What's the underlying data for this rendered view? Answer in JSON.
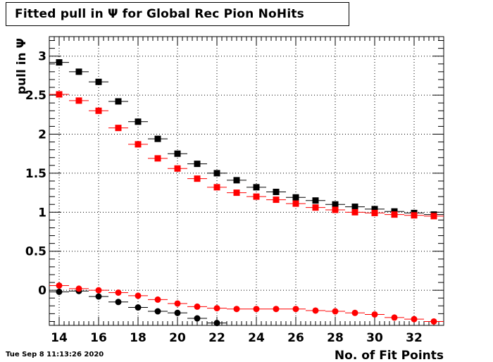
{
  "footer": {
    "timestamp": "Tue Sep  8 11:13:26 2020"
  },
  "chart_data": {
    "type": "scatter",
    "title": "Fitted pull in  Ψ  for Global Rec Pion NoHits",
    "xlabel": "No. of Fit Points",
    "ylabel": "pull in  Ψ",
    "xlim": [
      13.5,
      33.5
    ],
    "ylim": [
      -0.45,
      3.25
    ],
    "x_ticks": [
      "14",
      "16",
      "18",
      "20",
      "22",
      "24",
      "26",
      "28",
      "30",
      "32"
    ],
    "y_ticks": [
      "0",
      "0.5",
      "1",
      "1.5",
      "2",
      "2.5",
      "3"
    ],
    "x_tick_values": [
      14,
      16,
      18,
      20,
      22,
      24,
      26,
      28,
      30,
      32
    ],
    "y_tick_values": [
      0,
      0.5,
      1,
      1.5,
      2,
      2.5,
      3
    ],
    "grid": true,
    "x": [
      14,
      15,
      16,
      17,
      18,
      19,
      20,
      21,
      22,
      23,
      24,
      25,
      26,
      27,
      28,
      29,
      30,
      31,
      32,
      33
    ],
    "series": [
      {
        "color": "#000000",
        "marker": "square",
        "values": [
          2.92,
          2.8,
          2.67,
          2.42,
          2.16,
          1.94,
          1.75,
          1.62,
          1.5,
          1.41,
          1.32,
          1.26,
          1.19,
          1.15,
          1.1,
          1.07,
          1.04,
          1.01,
          0.99,
          0.97
        ]
      },
      {
        "color": "#ff0000",
        "marker": "square",
        "values": [
          2.51,
          2.43,
          2.3,
          2.08,
          1.87,
          1.69,
          1.56,
          1.43,
          1.32,
          1.25,
          1.2,
          1.16,
          1.11,
          1.06,
          1.03,
          1.0,
          0.99,
          0.97,
          0.96,
          0.95
        ]
      },
      {
        "color": "#000000",
        "marker": "circle",
        "values": [
          -0.02,
          -0.01,
          -0.08,
          -0.15,
          -0.22,
          -0.27,
          -0.29,
          -0.36,
          -0.42,
          null,
          null,
          null,
          null,
          null,
          null,
          null,
          null,
          null,
          null,
          null
        ]
      },
      {
        "color": "#ff0000",
        "marker": "circle",
        "values": [
          0.06,
          0.02,
          0.0,
          -0.03,
          -0.07,
          -0.12,
          -0.17,
          -0.21,
          -0.23,
          -0.24,
          -0.24,
          -0.24,
          -0.24,
          -0.26,
          -0.27,
          -0.29,
          -0.31,
          -0.35,
          -0.37,
          -0.4
        ]
      }
    ]
  }
}
